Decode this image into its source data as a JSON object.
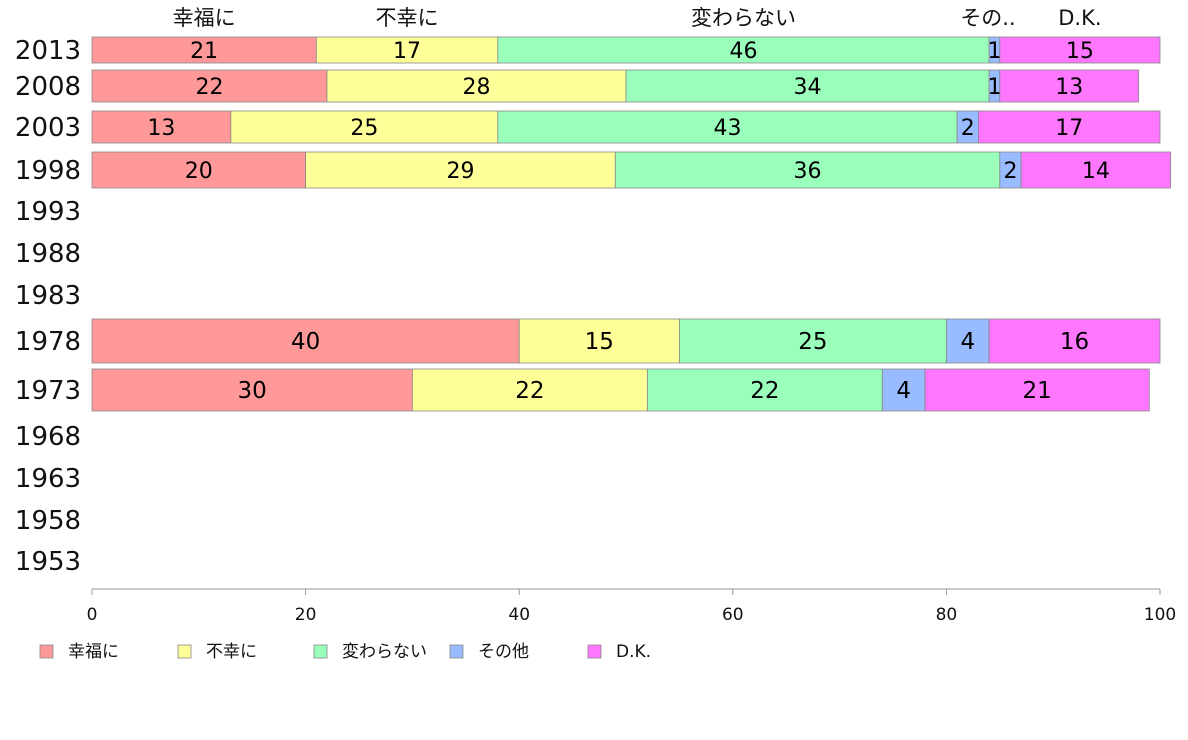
{
  "chart_data": {
    "type": "bar",
    "orientation": "horizontal",
    "stacked": true,
    "categories": [
      "2013",
      "2008",
      "2003",
      "1998",
      "1993",
      "1988",
      "1983",
      "1978",
      "1973",
      "1968",
      "1963",
      "1958",
      "1953"
    ],
    "series": [
      {
        "name": "幸福に",
        "color": "#ff9999",
        "values": [
          21,
          22,
          13,
          20,
          null,
          null,
          null,
          40,
          30,
          null,
          null,
          null,
          null
        ]
      },
      {
        "name": "不幸に",
        "color": "#ffff99",
        "values": [
          17,
          28,
          25,
          29,
          null,
          null,
          null,
          15,
          22,
          null,
          null,
          null,
          null
        ]
      },
      {
        "name": "変わらない",
        "color": "#99ffbb",
        "values": [
          46,
          34,
          43,
          36,
          null,
          null,
          null,
          25,
          22,
          null,
          null,
          null,
          null
        ]
      },
      {
        "name": "その他",
        "color": "#99bbff",
        "values": [
          1,
          1,
          2,
          2,
          null,
          null,
          null,
          4,
          4,
          null,
          null,
          null,
          null
        ]
      },
      {
        "name": "D.K.",
        "color": "#ff77ff",
        "values": [
          15,
          13,
          17,
          14,
          null,
          null,
          null,
          16,
          21,
          null,
          null,
          null,
          null
        ]
      }
    ],
    "top_labels": [
      "幸福に",
      "不幸に",
      "変わらない",
      "その..",
      "D.K."
    ],
    "xlim": [
      0,
      100
    ],
    "xticks": [
      0,
      20,
      40,
      60,
      80,
      100
    ],
    "grid": false,
    "legend_position": "bottom"
  }
}
